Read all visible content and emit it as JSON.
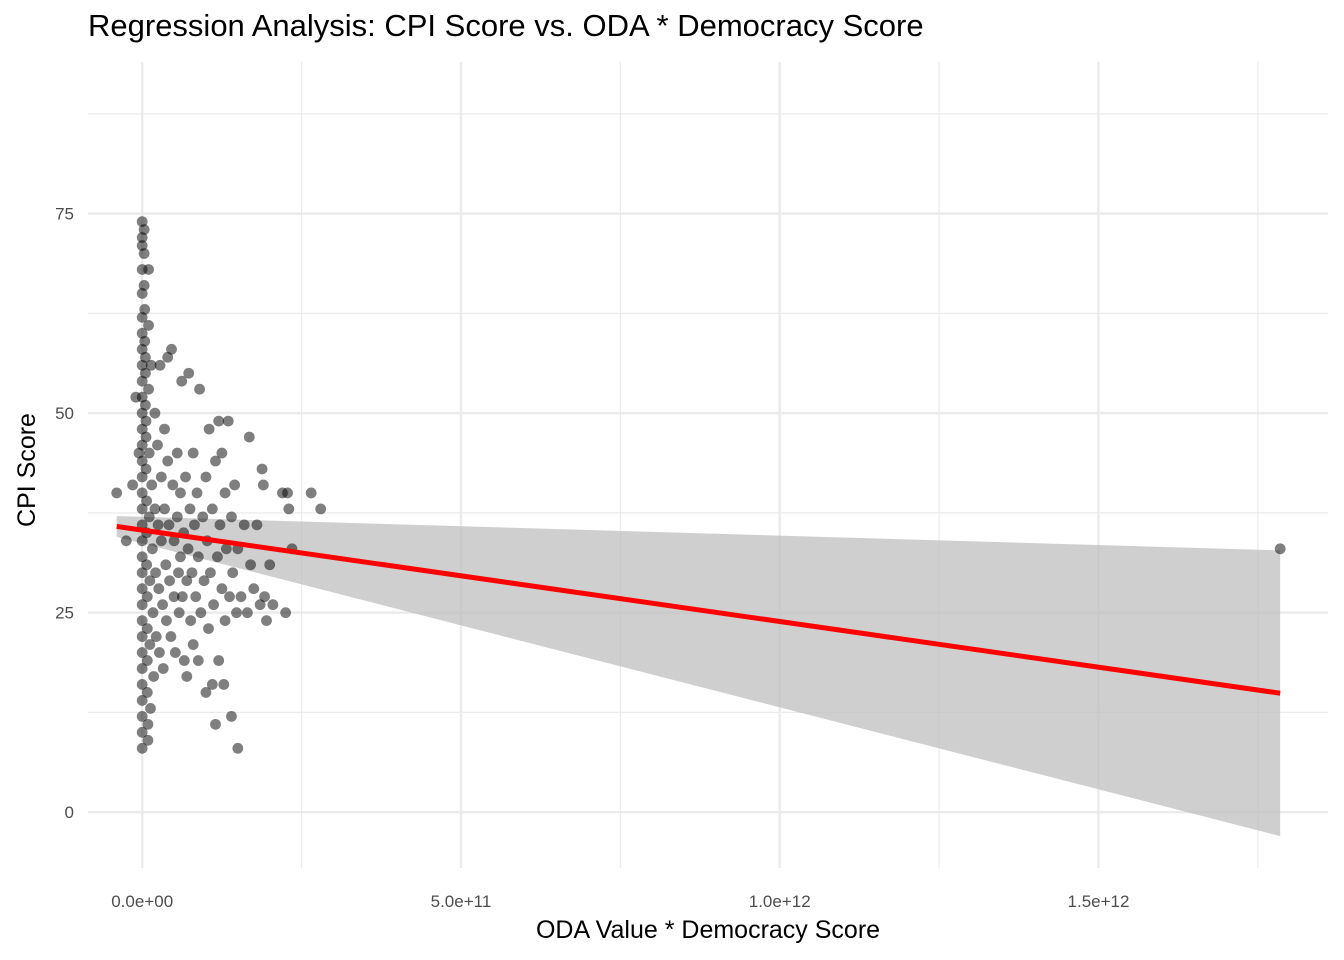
{
  "chart_data": {
    "type": "scatter",
    "title": "Regression Analysis: CPI Score vs. ODA * Democracy Score",
    "xlabel": "ODA Value * Democracy Score",
    "ylabel": "CPI Score",
    "xlim": [
      -85000000000,
      1860000000000
    ],
    "ylim": [
      -7,
      94
    ],
    "x_ticks": [
      0,
      500000000000,
      1000000000000,
      1500000000000
    ],
    "x_tick_labels": [
      "0.0e+00",
      "5.0e+11",
      "1.0e+12",
      "1.5e+12"
    ],
    "y_ticks": [
      0,
      25,
      50,
      75
    ],
    "y_tick_labels": [
      "0",
      "25",
      "50",
      "75"
    ],
    "grid": true,
    "point_color": "#000000",
    "point_opacity": 0.5,
    "line_color": "#ff0000",
    "band_color": "#bdbdbd",
    "series": [
      {
        "kind": "points",
        "points": [
          [
            -40000000000,
            40
          ],
          [
            -25000000000,
            34
          ],
          [
            -15000000000,
            41
          ],
          [
            -10000000000,
            52
          ],
          [
            -5000000000,
            45
          ],
          [
            0,
            74
          ],
          [
            0,
            72
          ],
          [
            0,
            71
          ],
          [
            0,
            68
          ],
          [
            0,
            65
          ],
          [
            0,
            62
          ],
          [
            0,
            60
          ],
          [
            0,
            58
          ],
          [
            0,
            56
          ],
          [
            0,
            54
          ],
          [
            0,
            52
          ],
          [
            0,
            50
          ],
          [
            0,
            48
          ],
          [
            0,
            46
          ],
          [
            0,
            44
          ],
          [
            0,
            42
          ],
          [
            0,
            40
          ],
          [
            0,
            38
          ],
          [
            0,
            36
          ],
          [
            0,
            34
          ],
          [
            0,
            32
          ],
          [
            0,
            30
          ],
          [
            0,
            28
          ],
          [
            0,
            26
          ],
          [
            0,
            24
          ],
          [
            0,
            22
          ],
          [
            0,
            20
          ],
          [
            0,
            18
          ],
          [
            0,
            16
          ],
          [
            0,
            14
          ],
          [
            0,
            12
          ],
          [
            0,
            10
          ],
          [
            0,
            8
          ],
          [
            3000000000,
            73
          ],
          [
            3000000000,
            70
          ],
          [
            3000000000,
            66
          ],
          [
            4000000000,
            63
          ],
          [
            4000000000,
            59
          ],
          [
            5000000000,
            57
          ],
          [
            5000000000,
            55
          ],
          [
            5000000000,
            51
          ],
          [
            6000000000,
            49
          ],
          [
            6000000000,
            47
          ],
          [
            6000000000,
            43
          ],
          [
            7000000000,
            39
          ],
          [
            7000000000,
            35
          ],
          [
            7000000000,
            31
          ],
          [
            8000000000,
            27
          ],
          [
            8000000000,
            23
          ],
          [
            8000000000,
            19
          ],
          [
            8000000000,
            15
          ],
          [
            9000000000,
            11
          ],
          [
            9000000000,
            9
          ],
          [
            10000000000,
            68
          ],
          [
            10000000000,
            61
          ],
          [
            10000000000,
            53
          ],
          [
            11000000000,
            45
          ],
          [
            11000000000,
            37
          ],
          [
            12000000000,
            29
          ],
          [
            12000000000,
            21
          ],
          [
            13000000000,
            13
          ],
          [
            14000000000,
            56
          ],
          [
            15000000000,
            41
          ],
          [
            16000000000,
            33
          ],
          [
            17000000000,
            25
          ],
          [
            18000000000,
            17
          ],
          [
            20000000000,
            50
          ],
          [
            20000000000,
            38
          ],
          [
            21000000000,
            30
          ],
          [
            22000000000,
            22
          ],
          [
            24000000000,
            46
          ],
          [
            25000000000,
            36
          ],
          [
            26000000000,
            28
          ],
          [
            27000000000,
            20
          ],
          [
            28000000000,
            56
          ],
          [
            30000000000,
            42
          ],
          [
            30000000000,
            34
          ],
          [
            32000000000,
            26
          ],
          [
            33000000000,
            18
          ],
          [
            35000000000,
            48
          ],
          [
            35000000000,
            38
          ],
          [
            37000000000,
            31
          ],
          [
            38000000000,
            24
          ],
          [
            40000000000,
            57
          ],
          [
            40000000000,
            44
          ],
          [
            42000000000,
            36
          ],
          [
            43000000000,
            29
          ],
          [
            45000000000,
            22
          ],
          [
            46000000000,
            58
          ],
          [
            48000000000,
            41
          ],
          [
            50000000000,
            34
          ],
          [
            50000000000,
            27
          ],
          [
            52000000000,
            20
          ],
          [
            55000000000,
            45
          ],
          [
            55000000000,
            37
          ],
          [
            57000000000,
            30
          ],
          [
            58000000000,
            25
          ],
          [
            60000000000,
            40
          ],
          [
            60000000000,
            32
          ],
          [
            62000000000,
            54
          ],
          [
            63000000000,
            27
          ],
          [
            65000000000,
            35
          ],
          [
            66000000000,
            19
          ],
          [
            68000000000,
            42
          ],
          [
            70000000000,
            29
          ],
          [
            70000000000,
            17
          ],
          [
            72000000000,
            33
          ],
          [
            73000000000,
            55
          ],
          [
            75000000000,
            38
          ],
          [
            76000000000,
            24
          ],
          [
            78000000000,
            30
          ],
          [
            80000000000,
            45
          ],
          [
            80000000000,
            21
          ],
          [
            82000000000,
            36
          ],
          [
            84000000000,
            27
          ],
          [
            86000000000,
            40
          ],
          [
            88000000000,
            32
          ],
          [
            88000000000,
            19
          ],
          [
            90000000000,
            53
          ],
          [
            92000000000,
            25
          ],
          [
            95000000000,
            37
          ],
          [
            97000000000,
            29
          ],
          [
            100000000000,
            15
          ],
          [
            100000000000,
            42
          ],
          [
            102000000000,
            34
          ],
          [
            104000000000,
            23
          ],
          [
            105000000000,
            48
          ],
          [
            107000000000,
            30
          ],
          [
            110000000000,
            16
          ],
          [
            110000000000,
            38
          ],
          [
            112000000000,
            26
          ],
          [
            115000000000,
            44
          ],
          [
            115000000000,
            11
          ],
          [
            118000000000,
            32
          ],
          [
            120000000000,
            19
          ],
          [
            120000000000,
            49
          ],
          [
            122000000000,
            36
          ],
          [
            125000000000,
            28
          ],
          [
            125000000000,
            45
          ],
          [
            128000000000,
            16
          ],
          [
            130000000000,
            24
          ],
          [
            130000000000,
            40
          ],
          [
            132000000000,
            33
          ],
          [
            135000000000,
            49
          ],
          [
            137000000000,
            27
          ],
          [
            140000000000,
            12
          ],
          [
            140000000000,
            37
          ],
          [
            142000000000,
            30
          ],
          [
            145000000000,
            41
          ],
          [
            148000000000,
            25
          ],
          [
            150000000000,
            8
          ],
          [
            150000000000,
            33
          ],
          [
            155000000000,
            27
          ],
          [
            160000000000,
            36
          ],
          [
            165000000000,
            25
          ],
          [
            168000000000,
            47
          ],
          [
            170000000000,
            31
          ],
          [
            175000000000,
            28
          ],
          [
            180000000000,
            36
          ],
          [
            185000000000,
            26
          ],
          [
            188000000000,
            43
          ],
          [
            190000000000,
            41
          ],
          [
            192000000000,
            27
          ],
          [
            195000000000,
            24
          ],
          [
            200000000000,
            31
          ],
          [
            205000000000,
            26
          ],
          [
            220000000000,
            40
          ],
          [
            225000000000,
            25
          ],
          [
            228000000000,
            40
          ],
          [
            230000000000,
            38
          ],
          [
            235000000000,
            33
          ],
          [
            265000000000,
            40
          ],
          [
            280000000000,
            38
          ],
          [
            1785000000000,
            33
          ]
        ]
      },
      {
        "kind": "regression",
        "line": [
          [
            -40000000000,
            35.8
          ],
          [
            1785000000000,
            14.9
          ]
        ],
        "band_upper": [
          [
            -40000000000,
            37.1
          ],
          [
            1785000000000,
            32.8
          ]
        ],
        "band_lower": [
          [
            -40000000000,
            34.5
          ],
          [
            1785000000000,
            -3.0
          ]
        ]
      }
    ]
  }
}
